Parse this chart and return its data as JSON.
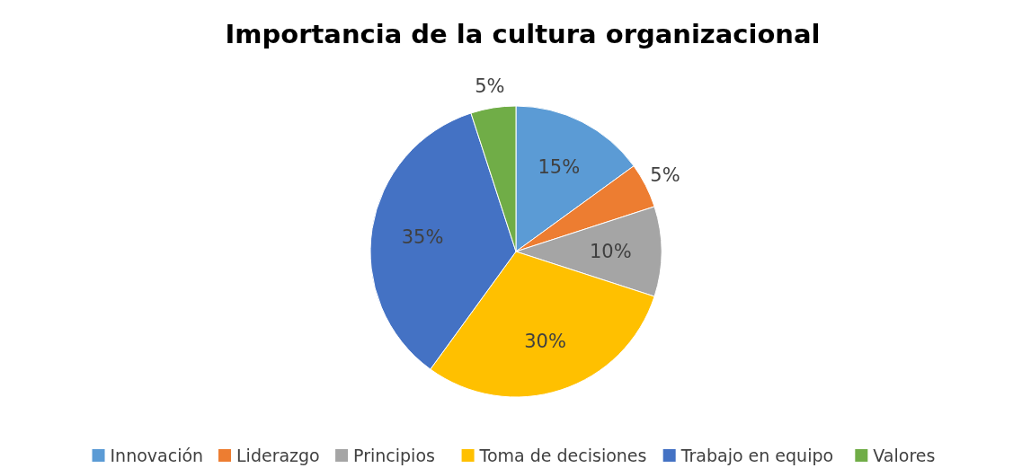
{
  "chart_data": {
    "type": "pie",
    "title": "Importancia de la cultura organizacional",
    "categories": [
      "Innovación",
      "Liderazgo",
      "Principios",
      "Toma de decisiones",
      "Trabajo en equipo",
      "Valores"
    ],
    "values": [
      15,
      5,
      10,
      30,
      35,
      5
    ],
    "colors": [
      "#5b9bd5",
      "#ed7d31",
      "#a5a5a5",
      "#ffc000",
      "#4472c4",
      "#70ad47"
    ],
    "value_labels": [
      "15%",
      "5%",
      "10%",
      "30%",
      "35%",
      "5%"
    ],
    "legend": "bottom"
  }
}
